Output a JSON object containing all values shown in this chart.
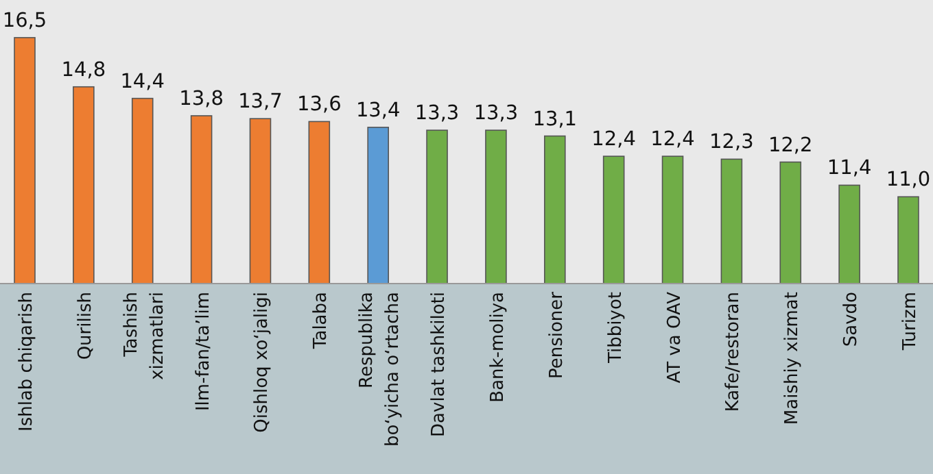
{
  "chart_data": {
    "type": "bar",
    "categories": [
      "Ishlab chiqarish",
      "Qurilish",
      "Tashish\nxizmatlari",
      "Ilm-fan/ta’lim",
      "Qishloq xo‘jaligi",
      "Talaba",
      "Respublika\nbo‘yicha o‘rtacha",
      "Davlat tashkiloti",
      "Bank-moliya",
      "Pensioner",
      "Tibbiyot",
      "AT va OAV",
      "Kafe/restoran",
      "Maishiy xizmat",
      "Savdo",
      "Turizm"
    ],
    "values": [
      16.5,
      14.8,
      14.4,
      13.8,
      13.7,
      13.6,
      13.4,
      13.3,
      13.3,
      13.1,
      12.4,
      12.4,
      12.3,
      12.2,
      11.4,
      11.0
    ],
    "colors": [
      "#ed7d31",
      "#ed7d31",
      "#ed7d31",
      "#ed7d31",
      "#ed7d31",
      "#ed7d31",
      "#5b9bd5",
      "#70ad47",
      "#70ad47",
      "#70ad47",
      "#70ad47",
      "#70ad47",
      "#70ad47",
      "#70ad47",
      "#70ad47",
      "#70ad47"
    ],
    "value_labels": [
      "16,5",
      "14,8",
      "14,4",
      "13,8",
      "13,7",
      "13,6",
      "13,4",
      "13,3",
      "13,3",
      "13,1",
      "12,4",
      "12,4",
      "12,3",
      "12,2",
      "11,4",
      "11,0"
    ],
    "ylim": [
      8,
      17.8
    ]
  }
}
